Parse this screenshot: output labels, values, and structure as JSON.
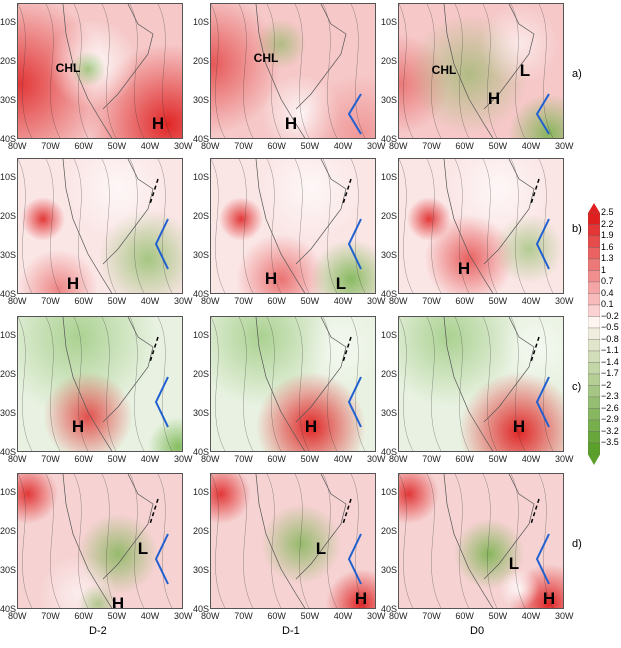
{
  "figure": {
    "columns": [
      "D-2",
      "D-1",
      "D0"
    ],
    "rows": [
      "a)",
      "b)",
      "c)",
      "d)"
    ],
    "x_ticks": [
      "80W",
      "70W",
      "60W",
      "50W",
      "40W",
      "30W"
    ],
    "y_ticks": [
      "10S",
      "20S",
      "30S",
      "40S"
    ],
    "panel_labels": [
      [
        "CHL",
        "H"
      ],
      [
        "CHL",
        "H"
      ],
      [
        "CHL",
        "H",
        "L"
      ],
      [
        "H"
      ],
      [
        "H",
        "L"
      ],
      [
        "H"
      ],
      [
        "H"
      ],
      [
        "H"
      ],
      [
        "H"
      ],
      [
        "L",
        "H"
      ],
      [
        "L",
        "H"
      ],
      [
        "L",
        "H"
      ]
    ],
    "colorbar": {
      "labels": [
        "2.5",
        "2.2",
        "1.9",
        "1.6",
        "1.3",
        "1",
        "0.7",
        "0.4",
        "0.1",
        "−0.2",
        "−0.5",
        "−0.8",
        "−1.1",
        "−1.4",
        "−1.7",
        "−2",
        "−2.3",
        "−2.6",
        "−2.9",
        "−3.2",
        "−3.5"
      ],
      "high_color": "#e02020",
      "low_color": "#5aa02a"
    },
    "colors": {
      "cold_front": "#2060d0",
      "trough": "#000000"
    }
  }
}
